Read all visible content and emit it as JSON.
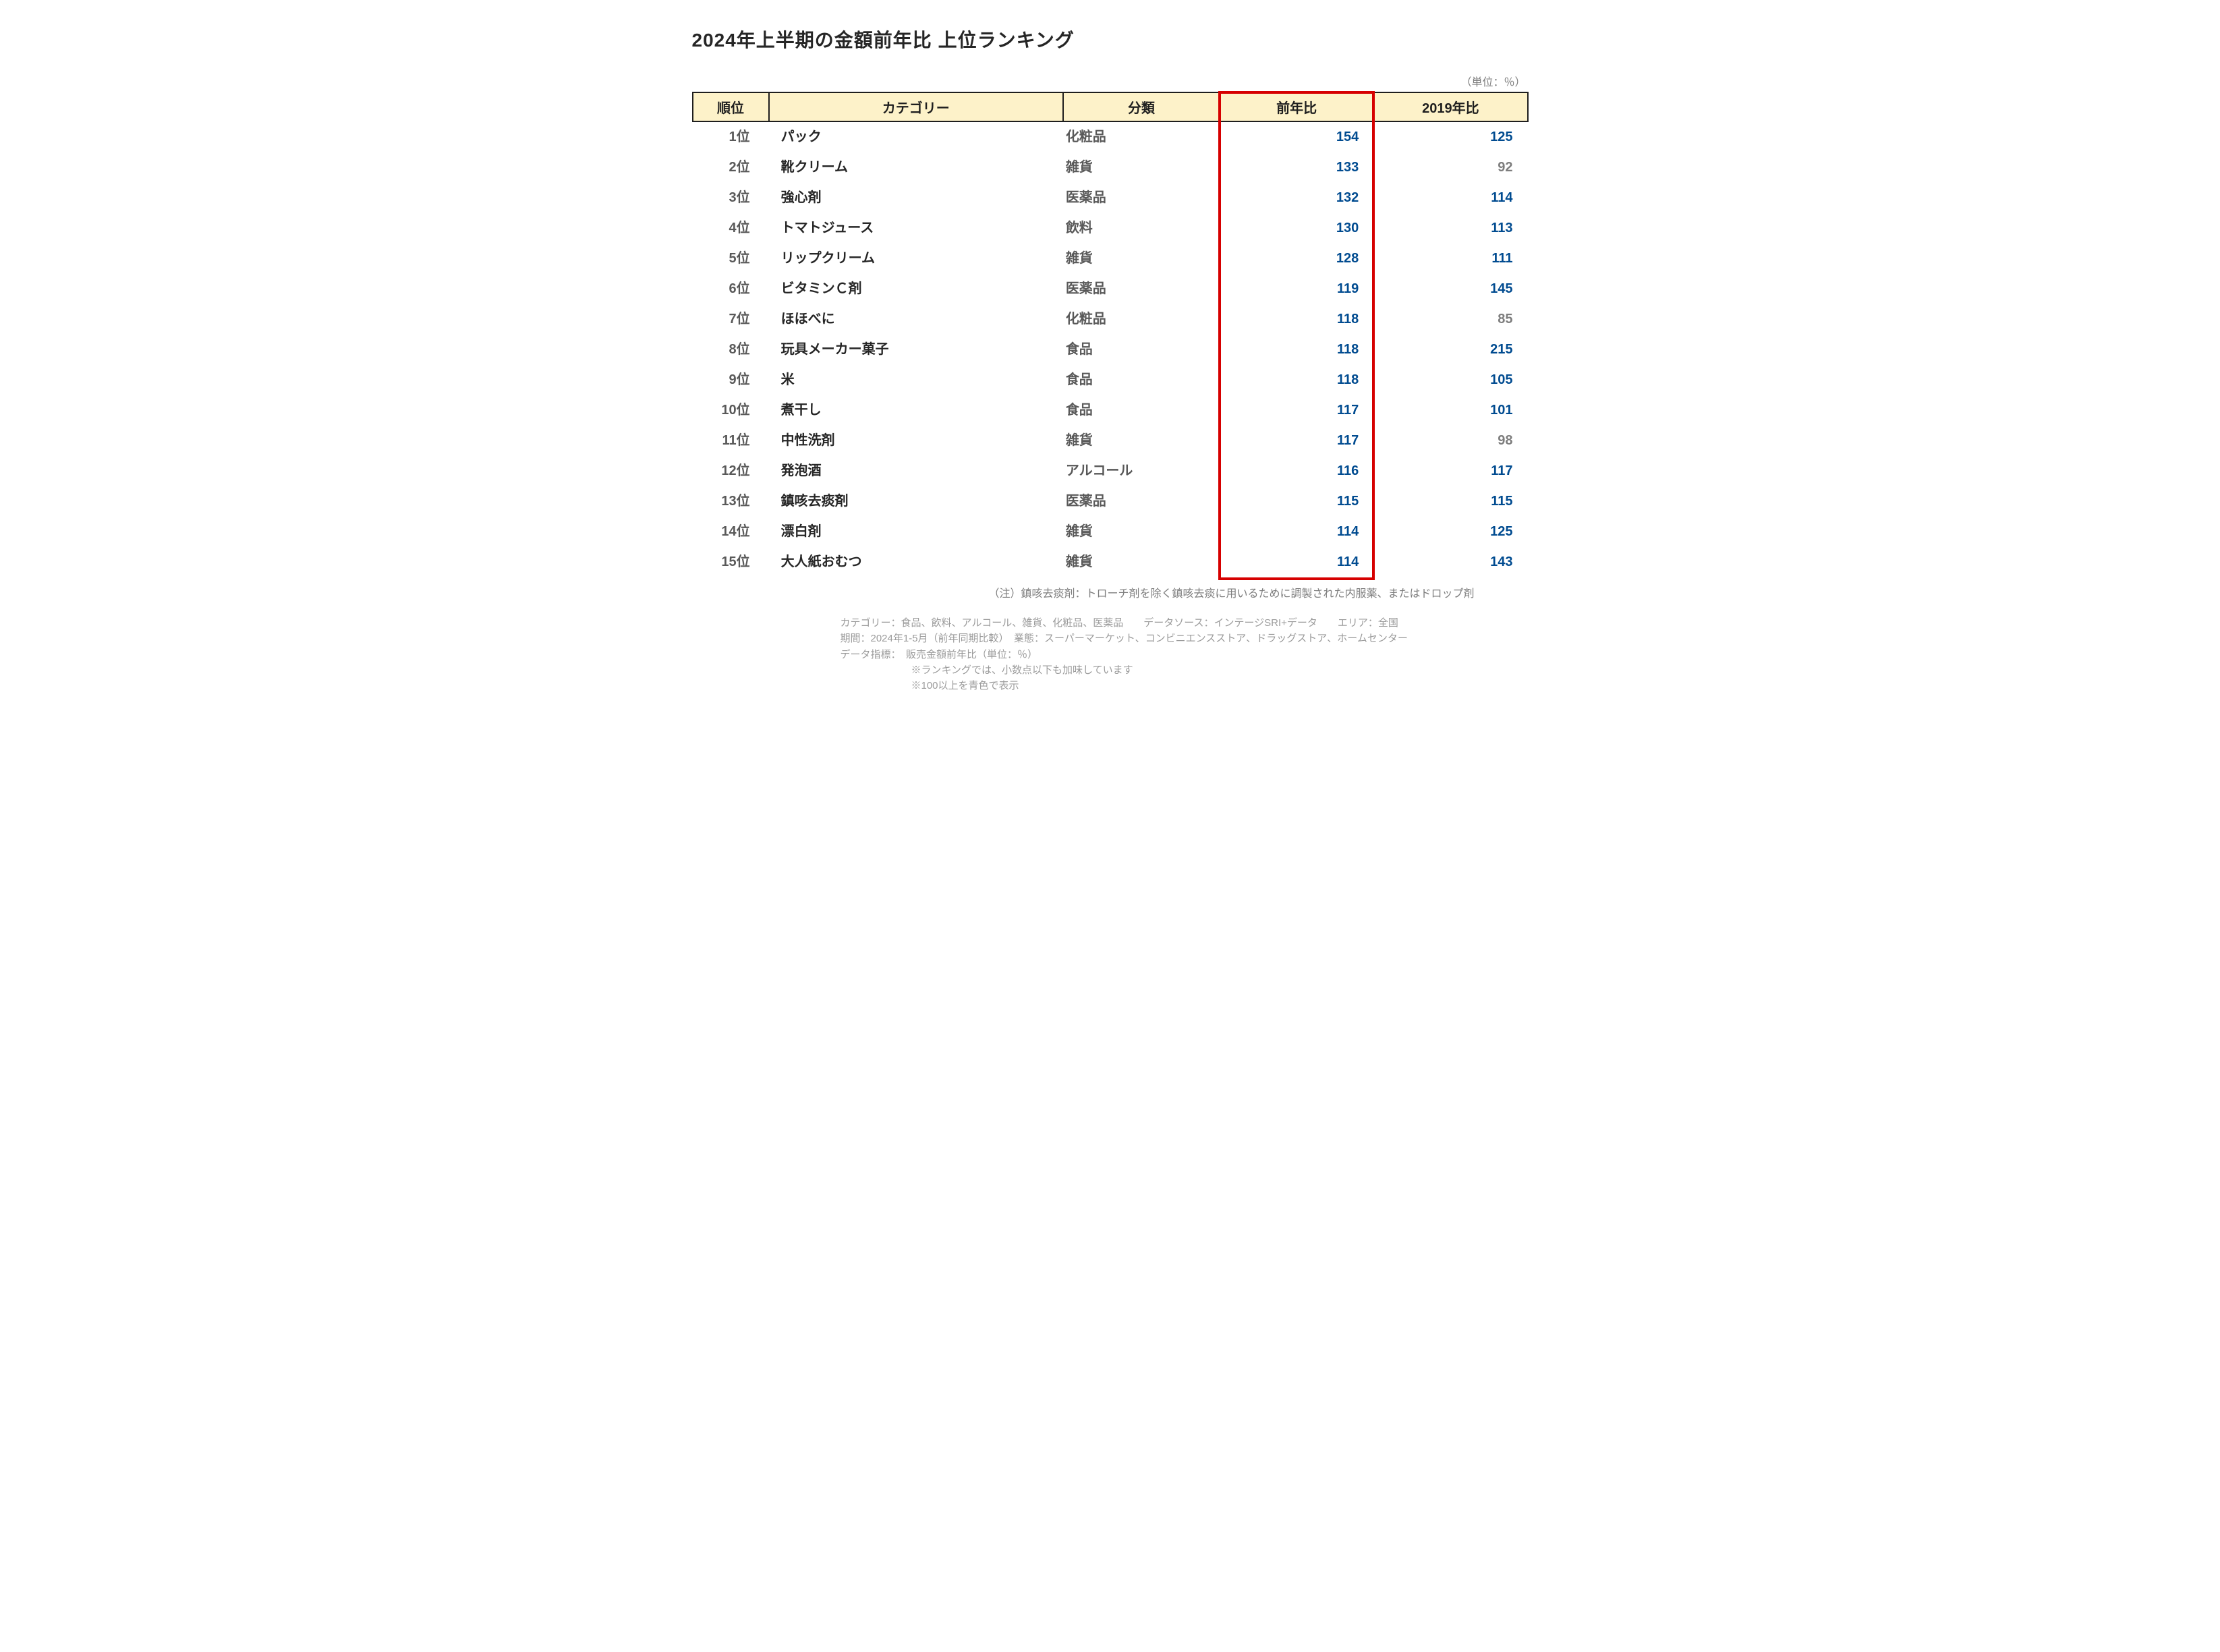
{
  "title": "2024年上半期の金額前年比 上位ランキング",
  "unit_label": "（単位：％）",
  "columns": {
    "rank": "順位",
    "category": "カテゴリー",
    "type": "分類",
    "yoy": "前年比",
    "vs2019": "2019年比"
  },
  "threshold": 100,
  "colors": {
    "header_bg": "#fdf2c9",
    "header_border": "#1e1e1e",
    "highlight_border": "#d60000",
    "value_high": "#004b90",
    "value_low": "#7d7d7d",
    "title_color": "#262626",
    "note_color": "#7d7d7d",
    "subnote_color": "#9b9b9b"
  },
  "rows": [
    {
      "rank": "1位",
      "category": "パック",
      "type": "化粧品",
      "yoy": 154,
      "vs2019": 125
    },
    {
      "rank": "2位",
      "category": "靴クリーム",
      "type": "雑貨",
      "yoy": 133,
      "vs2019": 92
    },
    {
      "rank": "3位",
      "category": "強心剤",
      "type": "医薬品",
      "yoy": 132,
      "vs2019": 114
    },
    {
      "rank": "4位",
      "category": "トマトジュース",
      "type": "飲料",
      "yoy": 130,
      "vs2019": 113
    },
    {
      "rank": "5位",
      "category": "リップクリーム",
      "type": "雑貨",
      "yoy": 128,
      "vs2019": 111
    },
    {
      "rank": "6位",
      "category": "ビタミンＣ剤",
      "type": "医薬品",
      "yoy": 119,
      "vs2019": 145
    },
    {
      "rank": "7位",
      "category": "ほほべに",
      "type": "化粧品",
      "yoy": 118,
      "vs2019": 85
    },
    {
      "rank": "8位",
      "category": "玩具メーカー菓子",
      "type": "食品",
      "yoy": 118,
      "vs2019": 215
    },
    {
      "rank": "9位",
      "category": "米",
      "type": "食品",
      "yoy": 118,
      "vs2019": 105
    },
    {
      "rank": "10位",
      "category": "煮干し",
      "type": "食品",
      "yoy": 117,
      "vs2019": 101
    },
    {
      "rank": "11位",
      "category": "中性洗剤",
      "type": "雑貨",
      "yoy": 117,
      "vs2019": 98
    },
    {
      "rank": "12位",
      "category": "発泡酒",
      "type": "アルコール",
      "yoy": 116,
      "vs2019": 117
    },
    {
      "rank": "13位",
      "category": "鎮咳去痰剤",
      "type": "医薬品",
      "yoy": 115,
      "vs2019": 115
    },
    {
      "rank": "14位",
      "category": "漂白剤",
      "type": "雑貨",
      "yoy": 114,
      "vs2019": 125
    },
    {
      "rank": "15位",
      "category": "大人紙おむつ",
      "type": "雑貨",
      "yoy": 114,
      "vs2019": 143
    }
  ],
  "note_main": "（注）鎮咳去痰剤：トローチ剤を除く鎮咳去痰に用いるために調製された内服薬、またはドロップ剤",
  "note_lines": [
    "カテゴリー：食品、飲料、アルコール、雑貨、化粧品、医薬品　　データソース：インテージSRI+データ　　エリア：全国",
    "期間：2024年1-5月（前年同期比較）　業態：スーパーマーケット、コンビニエンスストア、ドラッグストア、ホームセンター",
    "データ指標：　販売金額前年比（単位：％）",
    "　　　　　　　※ランキングでは、小数点以下も加味しています",
    "　　　　　　　※100以上を青色で表示"
  ]
}
